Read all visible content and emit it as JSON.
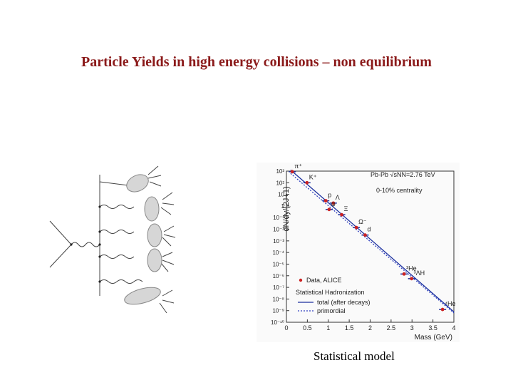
{
  "title": "Particle Yields in high energy collisions – non equilibrium",
  "caption": "Statistical  model",
  "colors": {
    "title": "#8b1a1a",
    "data": "#cc2222",
    "total": "#1a2f9e",
    "primordial": "#3040c0"
  },
  "chart_data": {
    "type": "scatter",
    "ylabel": "dN/dy/(2J+1)",
    "xlabel": "Mass (GeV)",
    "xlim": [
      0,
      4
    ],
    "ylim_log10": [
      -10,
      3
    ],
    "x_ticks": [
      "0",
      "0.5",
      "1",
      "1.5",
      "2",
      "2.5",
      "3",
      "3.5",
      "4"
    ],
    "y_ticks": [
      "10³",
      "10²",
      "10",
      "1",
      "10⁻¹",
      "10⁻²",
      "10⁻³",
      "10⁻⁴",
      "10⁻⁵",
      "10⁻⁶",
      "10⁻⁷",
      "10⁻⁸",
      "10⁻⁹",
      "10⁻¹⁰"
    ],
    "annotations": {
      "system": "Pb-Pb  √sNN=2.76 TeV",
      "centrality": "0-10% centrality"
    },
    "legend": {
      "data": "Data, ALICE",
      "group": "Statistical Hadronization",
      "total": "total (after decays)",
      "primordial": "primordial"
    },
    "points": [
      {
        "label": "π⁺",
        "mass": 0.14,
        "log10_value": 2.95
      },
      {
        "label": "K⁺",
        "mass": 0.49,
        "log10_value": 2.0
      },
      {
        "label": "p",
        "mass": 0.94,
        "log10_value": 0.45
      },
      {
        "label": "Λ",
        "mass": 1.12,
        "log10_value": 0.25
      },
      {
        "label": "φ",
        "mass": 1.02,
        "log10_value": -0.3
      },
      {
        "label": "Ξ",
        "mass": 1.32,
        "log10_value": -0.75
      },
      {
        "label": "Ω⁻",
        "mass": 1.67,
        "log10_value": -1.85
      },
      {
        "label": "d",
        "mass": 1.88,
        "log10_value": -2.5
      },
      {
        "label": "³He",
        "mass": 2.81,
        "log10_value": -5.85
      },
      {
        "label": "³ΛH",
        "mass": 2.99,
        "log10_value": -6.25
      },
      {
        "label": "⁴He",
        "mass": 3.73,
        "log10_value": -8.9
      }
    ],
    "total_line": {
      "mass": [
        0.1,
        4.0
      ],
      "log10_value": [
        3.1,
        -9.1
      ]
    },
    "primordial_line": {
      "mass": [
        0.1,
        4.0
      ],
      "log10_value": [
        2.8,
        -9.2
      ]
    }
  }
}
